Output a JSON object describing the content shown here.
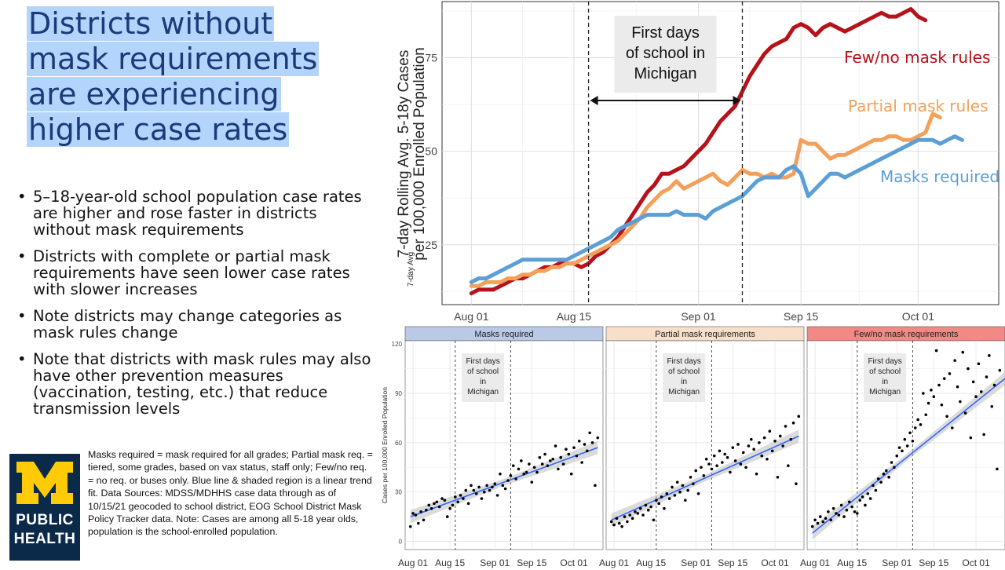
{
  "title_lines": [
    "Districts without",
    "mask requirements",
    "are experiencing",
    "higher case rates"
  ],
  "bullets": [
    "5–18-year-old school population case rates are higher and rose faster in districts without mask requirements",
    "Districts with complete or partial mask requirements have seen lower case rates with slower increases",
    "Note districts may change categories as mask rules change",
    "Note that districts with mask rules may also have other prevention measures (vaccination, testing, etc.) that reduce transmission levels"
  ],
  "logo": {
    "line1": "PUBLIC",
    "line2": "HEALTH",
    "colors": {
      "background": "#0b2a4a",
      "block_m": "#ffcb05"
    }
  },
  "footnote": "Masks required = mask required for all grades; Partial mask req. = tiered, some grades, based on vax status, staff only; Few/no req. = no req. or buses only. Blue line & shaded region is a linear trend fit. Data Sources: MDSS/MDHHS case data through as of 10/15/21 geocoded to school district, EOG School District Mask Policy Tracker data. Note: Cases are among all 5-18 year olds, population is the school-enrolled population.",
  "chart_data": [
    {
      "type": "line",
      "title": "",
      "ylabel": "7-day Rolling Avg. 5-18y Cases per 100,000 Enrolled Population",
      "ylabel_overlap_text": "7-day Avg",
      "xlabel": "",
      "x_ticks": [
        "Aug 01",
        "Aug 15",
        "Sep 01",
        "Sep 15",
        "Oct 01"
      ],
      "y_ticks": [
        25,
        50,
        75
      ],
      "xlim": [
        "2021-07-28",
        "2021-10-12"
      ],
      "ylim": [
        9,
        90
      ],
      "grid": true,
      "legend": "inline labels",
      "annotation": {
        "text": [
          "First days",
          "of school in",
          "Michigan"
        ],
        "start": "2021-08-17",
        "end": "2021-09-07"
      },
      "series": [
        {
          "name": "Few/no mask rules",
          "color": "#b5121b",
          "x_start": "2021-08-01",
          "values": [
            12,
            13,
            13,
            13,
            14,
            15,
            16,
            16,
            17,
            18,
            19,
            19,
            20,
            20,
            20,
            19,
            20,
            22,
            23,
            25,
            27,
            30,
            33,
            36,
            39,
            41,
            44,
            44,
            45,
            46,
            48,
            50,
            52,
            55,
            58,
            60,
            62,
            66,
            70,
            73,
            76,
            78,
            79,
            80,
            83,
            84,
            83,
            81,
            83,
            84,
            83,
            82,
            83,
            84,
            85,
            86,
            87,
            86,
            86,
            87,
            88,
            86,
            85
          ]
        },
        {
          "name": "Partial mask rules",
          "color": "#f4a05a",
          "x_start": "2021-08-01",
          "values": [
            14,
            14,
            15,
            15,
            15,
            16,
            16,
            17,
            17,
            18,
            18,
            19,
            19,
            20,
            20,
            21,
            22,
            23,
            24,
            25,
            26,
            28,
            30,
            32,
            35,
            37,
            39,
            40,
            42,
            40,
            41,
            42,
            43,
            44,
            42,
            41,
            43,
            45,
            44,
            44,
            43,
            44,
            43,
            43,
            44,
            53,
            52,
            52,
            50,
            48,
            49,
            49,
            50,
            51,
            52,
            53,
            53,
            54,
            54,
            53,
            53,
            54,
            55,
            60,
            59
          ]
        },
        {
          "name": "Masks required",
          "color": "#5b9fd6",
          "x_start": "2021-08-01",
          "values": [
            15,
            16,
            16,
            17,
            18,
            19,
            20,
            21,
            21,
            21,
            21,
            21,
            21,
            21,
            22,
            23,
            24,
            25,
            26,
            27,
            29,
            30,
            31,
            32,
            33,
            33,
            33,
            33,
            34,
            33,
            33,
            33,
            32,
            34,
            35,
            36,
            37,
            38,
            40,
            42,
            43,
            43,
            43,
            45,
            46,
            44,
            38,
            40,
            42,
            44,
            44,
            43,
            44,
            45,
            46,
            47,
            48,
            49,
            50,
            51,
            52,
            53,
            53,
            53,
            52,
            53,
            54,
            53
          ]
        }
      ]
    },
    {
      "type": "scatter",
      "facets": [
        "Masks required",
        "Partial mask requirements",
        "Few/no mask requirements"
      ],
      "facet_header_colors": [
        "#b9c9e6",
        "#f7dfc9",
        "#f28985"
      ],
      "ylabel": "Cases per 100,000 Enrolled Population",
      "y_ticks": [
        0,
        30,
        60,
        90,
        120
      ],
      "x_ticks": [
        "Aug 01",
        "Aug 15",
        "Sep 01",
        "Sep 15",
        "Oct 01"
      ],
      "xlim": [
        "2021-07-29",
        "2021-10-12"
      ],
      "ylim": [
        -5,
        122
      ],
      "annotation": {
        "text": [
          "First days",
          "of school",
          "in",
          "Michigan"
        ],
        "start": "2021-08-17",
        "end": "2021-09-07"
      },
      "trend": [
        {
          "start": [
            "2021-07-31",
            15
          ],
          "end": [
            "2021-10-10",
            57
          ]
        },
        {
          "start": [
            "2021-07-31",
            13
          ],
          "end": [
            "2021-10-10",
            64
          ]
        },
        {
          "start": [
            "2021-07-31",
            5
          ],
          "end": [
            "2021-10-12",
            99
          ]
        }
      ],
      "points": [
        [
          [
            0,
            9
          ],
          [
            1,
            17
          ],
          [
            2,
            16
          ],
          [
            3,
            11
          ],
          [
            4,
            18
          ],
          [
            5,
            13
          ],
          [
            6,
            19
          ],
          [
            7,
            22
          ],
          [
            8,
            20
          ],
          [
            9,
            23
          ],
          [
            10,
            24
          ],
          [
            11,
            21
          ],
          [
            12,
            26
          ],
          [
            13,
            25
          ],
          [
            14,
            15
          ],
          [
            15,
            20
          ],
          [
            16,
            22
          ],
          [
            17,
            27
          ],
          [
            18,
            24
          ],
          [
            19,
            28
          ],
          [
            20,
            26
          ],
          [
            21,
            31
          ],
          [
            22,
            23
          ],
          [
            23,
            34
          ],
          [
            24,
            31
          ],
          [
            25,
            29
          ],
          [
            26,
            33
          ],
          [
            27,
            26
          ],
          [
            28,
            30
          ],
          [
            29,
            34
          ],
          [
            30,
            31
          ],
          [
            31,
            33
          ],
          [
            32,
            35
          ],
          [
            33,
            28
          ],
          [
            34,
            41
          ],
          [
            35,
            34
          ],
          [
            36,
            32
          ],
          [
            37,
            37
          ],
          [
            38,
            40
          ],
          [
            39,
            46
          ],
          [
            40,
            38
          ],
          [
            41,
            44
          ],
          [
            42,
            49
          ],
          [
            43,
            41
          ],
          [
            44,
            42
          ],
          [
            45,
            47
          ],
          [
            46,
            36
          ],
          [
            47,
            45
          ],
          [
            48,
            42
          ],
          [
            49,
            51
          ],
          [
            50,
            47
          ],
          [
            51,
            53
          ],
          [
            52,
            46
          ],
          [
            53,
            49
          ],
          [
            54,
            50
          ],
          [
            55,
            58
          ],
          [
            56,
            44
          ],
          [
            57,
            51
          ],
          [
            58,
            47
          ],
          [
            59,
            56
          ],
          [
            60,
            53
          ],
          [
            61,
            41
          ],
          [
            62,
            57
          ],
          [
            63,
            52
          ],
          [
            64,
            61
          ],
          [
            65,
            48
          ],
          [
            66,
            59
          ],
          [
            67,
            55
          ],
          [
            68,
            66
          ],
          [
            69,
            60
          ],
          [
            70,
            34
          ],
          [
            71,
            63
          ]
        ],
        [
          [
            0,
            12
          ],
          [
            1,
            10
          ],
          [
            2,
            14
          ],
          [
            3,
            11
          ],
          [
            4,
            9
          ],
          [
            5,
            15
          ],
          [
            6,
            12
          ],
          [
            7,
            16
          ],
          [
            8,
            14
          ],
          [
            9,
            18
          ],
          [
            10,
            17
          ],
          [
            11,
            20
          ],
          [
            12,
            16
          ],
          [
            13,
            22
          ],
          [
            14,
            19
          ],
          [
            15,
            21
          ],
          [
            16,
            13
          ],
          [
            17,
            25
          ],
          [
            18,
            23
          ],
          [
            19,
            27
          ],
          [
            20,
            20
          ],
          [
            21,
            29
          ],
          [
            22,
            26
          ],
          [
            23,
            33
          ],
          [
            24,
            28
          ],
          [
            25,
            36
          ],
          [
            26,
            30
          ],
          [
            27,
            34
          ],
          [
            28,
            25
          ],
          [
            29,
            31
          ],
          [
            30,
            39
          ],
          [
            31,
            35
          ],
          [
            32,
            43
          ],
          [
            33,
            29
          ],
          [
            34,
            45
          ],
          [
            35,
            40
          ],
          [
            36,
            50
          ],
          [
            37,
            47
          ],
          [
            38,
            44
          ],
          [
            39,
            52
          ],
          [
            40,
            46
          ],
          [
            41,
            55
          ],
          [
            42,
            48
          ],
          [
            43,
            53
          ],
          [
            44,
            51
          ],
          [
            45,
            42
          ],
          [
            46,
            57
          ],
          [
            47,
            49
          ],
          [
            48,
            59
          ],
          [
            49,
            47
          ],
          [
            50,
            54
          ],
          [
            51,
            45
          ],
          [
            52,
            58
          ],
          [
            53,
            62
          ],
          [
            54,
            56
          ],
          [
            55,
            41
          ],
          [
            56,
            60
          ],
          [
            57,
            52
          ],
          [
            58,
            63
          ],
          [
            59,
            50
          ],
          [
            60,
            67
          ],
          [
            61,
            55
          ],
          [
            62,
            61
          ],
          [
            63,
            39
          ],
          [
            64,
            64
          ],
          [
            65,
            58
          ],
          [
            66,
            70
          ],
          [
            67,
            46
          ],
          [
            68,
            62
          ],
          [
            69,
            72
          ],
          [
            70,
            35
          ],
          [
            71,
            76
          ]
        ],
        [
          [
            0,
            9
          ],
          [
            1,
            13
          ],
          [
            2,
            11
          ],
          [
            3,
            15
          ],
          [
            4,
            12
          ],
          [
            5,
            14
          ],
          [
            6,
            18
          ],
          [
            7,
            13
          ],
          [
            8,
            20
          ],
          [
            9,
            17
          ],
          [
            10,
            16
          ],
          [
            11,
            22
          ],
          [
            12,
            15
          ],
          [
            13,
            19
          ],
          [
            14,
            24
          ],
          [
            15,
            21
          ],
          [
            16,
            18
          ],
          [
            17,
            17
          ],
          [
            18,
            25
          ],
          [
            19,
            27
          ],
          [
            20,
            22
          ],
          [
            21,
            29
          ],
          [
            22,
            26
          ],
          [
            23,
            34
          ],
          [
            24,
            31
          ],
          [
            25,
            38
          ],
          [
            26,
            36
          ],
          [
            27,
            41
          ],
          [
            28,
            43
          ],
          [
            29,
            39
          ],
          [
            30,
            48
          ],
          [
            31,
            45
          ],
          [
            32,
            52
          ],
          [
            33,
            57
          ],
          [
            34,
            55
          ],
          [
            35,
            62
          ],
          [
            36,
            58
          ],
          [
            37,
            66
          ],
          [
            38,
            61
          ],
          [
            39,
            69
          ],
          [
            40,
            74
          ],
          [
            41,
            71
          ],
          [
            42,
            90
          ],
          [
            43,
            77
          ],
          [
            44,
            84
          ],
          [
            45,
            92
          ],
          [
            46,
            88
          ],
          [
            47,
            116
          ],
          [
            48,
            95
          ],
          [
            49,
            83
          ],
          [
            50,
            99
          ],
          [
            51,
            76
          ],
          [
            52,
            102
          ],
          [
            53,
            69
          ],
          [
            54,
            110
          ],
          [
            55,
            94
          ],
          [
            56,
            85
          ],
          [
            57,
            115
          ],
          [
            58,
            78
          ],
          [
            59,
            105
          ],
          [
            60,
            63
          ],
          [
            61,
            97
          ],
          [
            62,
            88
          ],
          [
            63,
            108
          ],
          [
            64,
            91
          ],
          [
            65,
            65
          ],
          [
            66,
            100
          ],
          [
            67,
            113
          ],
          [
            68,
            82
          ],
          [
            69,
            95
          ],
          [
            70,
            44
          ],
          [
            71,
            104
          ]
        ]
      ]
    }
  ]
}
